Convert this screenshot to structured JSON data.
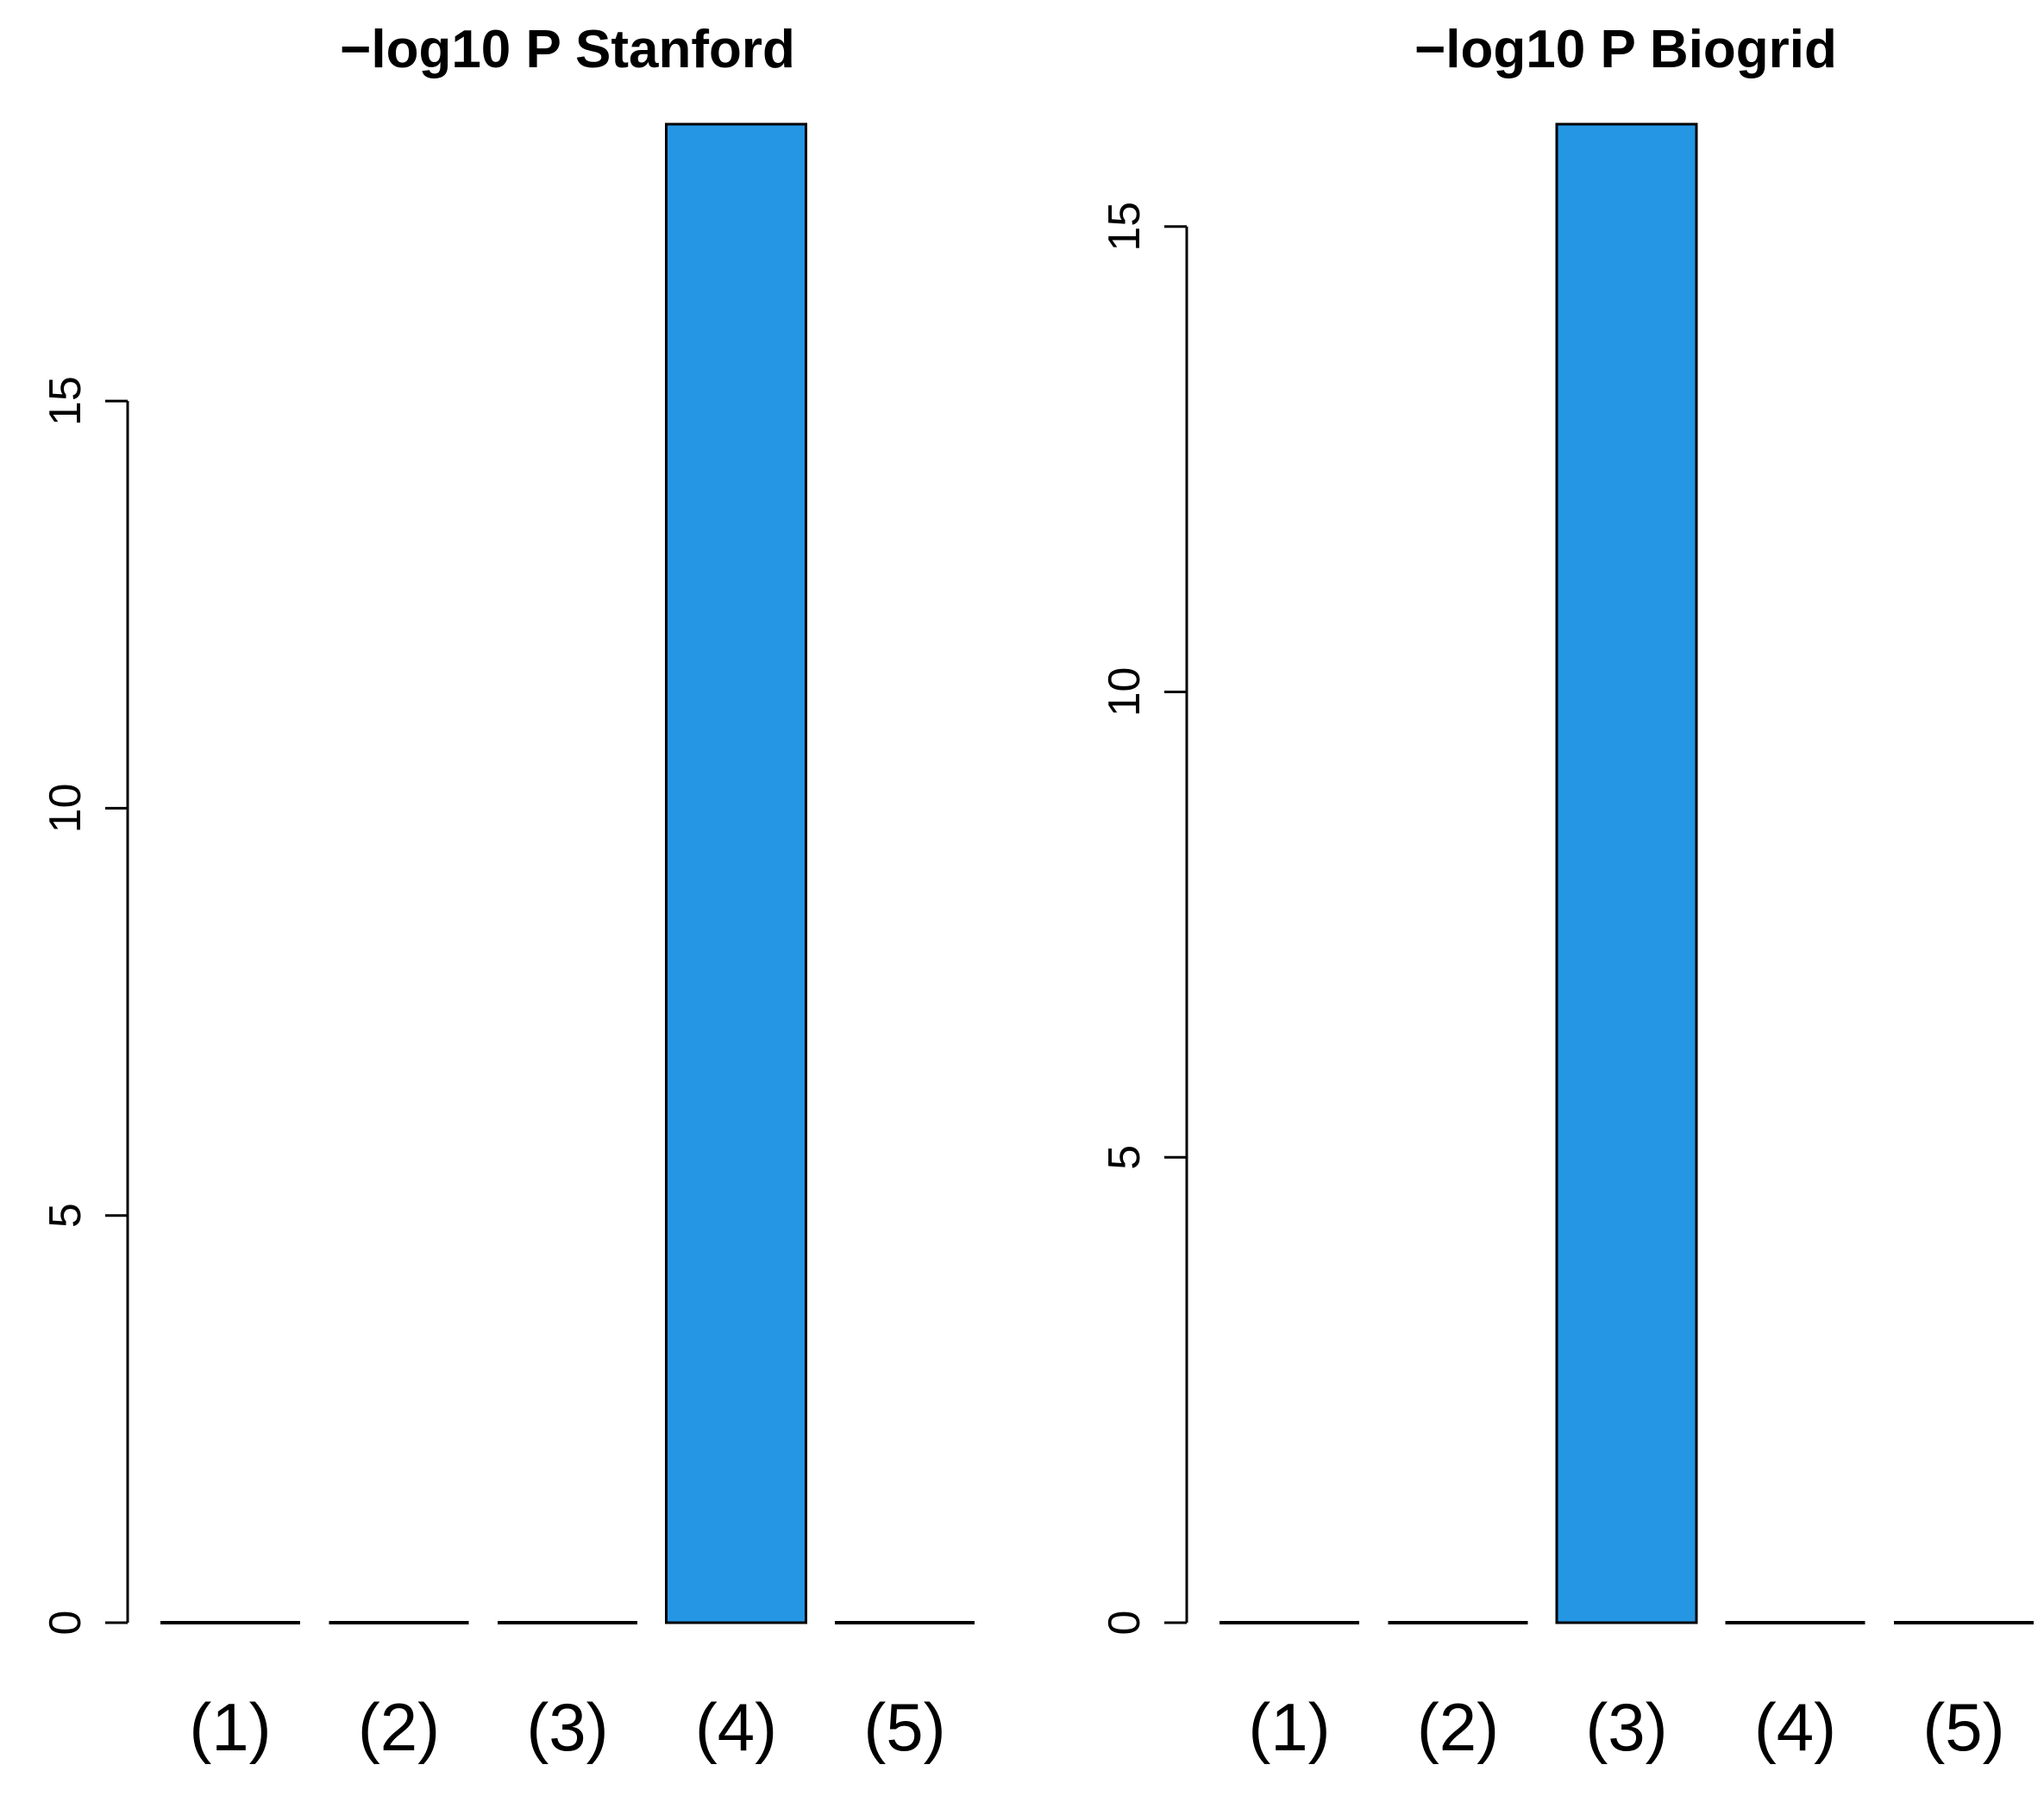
{
  "chart_data": [
    {
      "type": "bar",
      "title": "−log10 P Stanford",
      "xlabel": "",
      "ylabel": "",
      "categories": [
        "(1)",
        "(2)",
        "(3)",
        "(4)",
        "(5)"
      ],
      "values": [
        0,
        0,
        0,
        18.4,
        0
      ],
      "y_ticks": [
        "0",
        "5",
        "10",
        "15"
      ],
      "ylim": [
        0,
        18.4
      ],
      "bar_color": "#2596e4",
      "grid": false,
      "legend": "none"
    },
    {
      "type": "bar",
      "title": "−log10 P Biogrid",
      "xlabel": "",
      "ylabel": "",
      "categories": [
        "(1)",
        "(2)",
        "(3)",
        "(4)",
        "(5)"
      ],
      "values": [
        0,
        0,
        16.1,
        0,
        0
      ],
      "y_ticks": [
        "0",
        "5",
        "10",
        "15"
      ],
      "ylim": [
        0,
        16.1
      ],
      "bar_color": "#2596e4",
      "grid": false,
      "legend": "none"
    }
  ]
}
